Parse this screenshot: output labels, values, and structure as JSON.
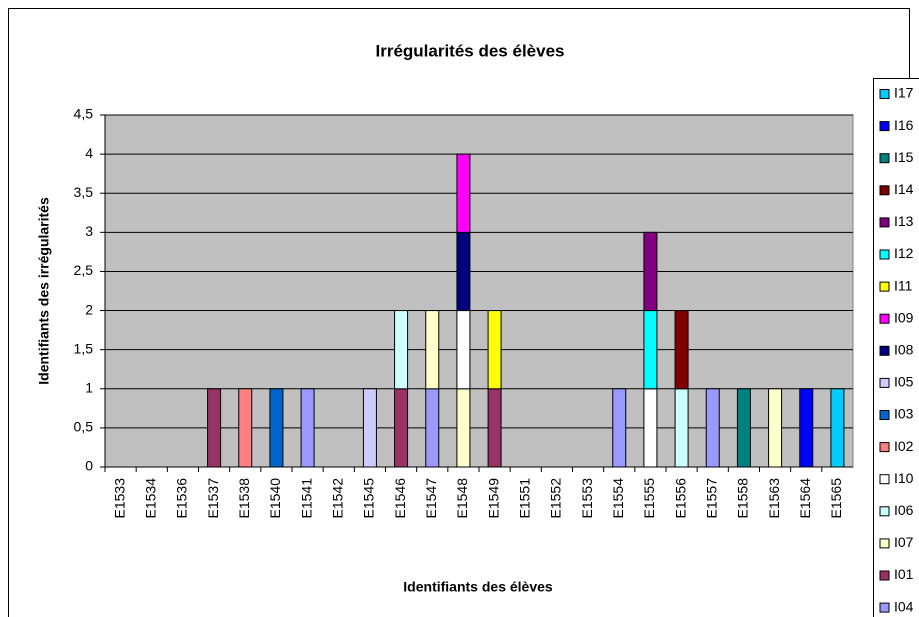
{
  "chart_data": {
    "type": "stacked_bar",
    "title": "Irrégularités des élèves",
    "x_label": "Identifiants des élèves",
    "y_label": "Identifiants des irrégularités",
    "categories": [
      "E1533",
      "E1534",
      "E1536",
      "E1537",
      "E1538",
      "E1540",
      "E1541",
      "E1542",
      "E1545",
      "E1546",
      "E1547",
      "E1548",
      "E1549",
      "E1551",
      "E1552",
      "E1553",
      "E1554",
      "E1555",
      "E1556",
      "E1557",
      "E1558",
      "E1563",
      "E1564",
      "E1565"
    ],
    "ylim": [
      0,
      4.5
    ],
    "yticks": [
      0,
      {
        "value": 0.5,
        "label": "0,5"
      },
      1,
      {
        "value": 1.5,
        "label": "1,5"
      },
      2,
      {
        "value": 2.5,
        "label": "2,5"
      },
      3,
      {
        "value": 3.5,
        "label": "3,5"
      },
      4,
      {
        "value": 4.5,
        "label": "4,5"
      }
    ],
    "grid": true,
    "legend": "right",
    "series": [
      {
        "name": "I04",
        "color": "#9999ff",
        "values": [
          null,
          null,
          null,
          null,
          null,
          null,
          1,
          null,
          null,
          null,
          1,
          null,
          null,
          null,
          null,
          null,
          1,
          null,
          null,
          1,
          null,
          null,
          null,
          null
        ]
      },
      {
        "name": "I01",
        "color": "#993366",
        "values": [
          null,
          null,
          null,
          1,
          null,
          null,
          null,
          null,
          null,
          1,
          null,
          null,
          1,
          null,
          null,
          null,
          null,
          null,
          null,
          null,
          null,
          null,
          null,
          null
        ]
      },
      {
        "name": "I07",
        "color": "#ffffcc",
        "values": [
          null,
          null,
          null,
          null,
          null,
          null,
          null,
          null,
          null,
          null,
          1,
          1,
          null,
          null,
          null,
          null,
          null,
          null,
          null,
          null,
          null,
          1,
          null,
          null
        ]
      },
      {
        "name": "I06",
        "color": "#ccffff",
        "values": [
          null,
          null,
          null,
          null,
          null,
          null,
          null,
          null,
          null,
          1,
          null,
          null,
          null,
          null,
          null,
          null,
          null,
          null,
          1,
          null,
          null,
          null,
          null,
          null
        ]
      },
      {
        "name": "I10",
        "color": "#ffffff",
        "values": [
          null,
          null,
          null,
          null,
          null,
          null,
          null,
          null,
          null,
          null,
          null,
          1,
          null,
          null,
          null,
          null,
          null,
          1,
          null,
          null,
          null,
          null,
          null,
          null
        ]
      },
      {
        "name": "I02",
        "color": "#ff8080",
        "values": [
          null,
          null,
          null,
          null,
          1,
          null,
          null,
          null,
          null,
          null,
          null,
          null,
          null,
          null,
          null,
          null,
          null,
          null,
          null,
          null,
          null,
          null,
          null,
          null
        ]
      },
      {
        "name": "I03",
        "color": "#0066cc",
        "values": [
          null,
          null,
          null,
          null,
          null,
          1,
          null,
          null,
          null,
          null,
          null,
          null,
          null,
          null,
          null,
          null,
          null,
          null,
          null,
          null,
          null,
          null,
          null,
          null
        ]
      },
      {
        "name": "I05",
        "color": "#ccccff",
        "values": [
          null,
          null,
          null,
          null,
          null,
          null,
          null,
          null,
          1,
          null,
          null,
          null,
          null,
          null,
          null,
          null,
          null,
          null,
          null,
          null,
          null,
          null,
          null,
          null
        ]
      },
      {
        "name": "I08",
        "color": "#000080",
        "values": [
          null,
          null,
          null,
          null,
          null,
          null,
          null,
          null,
          null,
          null,
          null,
          1,
          null,
          null,
          null,
          null,
          null,
          null,
          null,
          null,
          null,
          null,
          null,
          null
        ]
      },
      {
        "name": "I09",
        "color": "#ff00ff",
        "values": [
          null,
          null,
          null,
          null,
          null,
          null,
          null,
          null,
          null,
          null,
          null,
          1,
          null,
          null,
          null,
          null,
          null,
          null,
          null,
          null,
          null,
          null,
          null,
          null
        ]
      },
      {
        "name": "I11",
        "color": "#ffff00",
        "values": [
          null,
          null,
          null,
          null,
          null,
          null,
          null,
          null,
          null,
          null,
          null,
          null,
          1,
          null,
          null,
          null,
          null,
          null,
          null,
          null,
          null,
          null,
          null,
          null
        ]
      },
      {
        "name": "I12",
        "color": "#00ffff",
        "values": [
          null,
          null,
          null,
          null,
          null,
          null,
          null,
          null,
          null,
          null,
          null,
          null,
          null,
          null,
          null,
          null,
          null,
          1,
          null,
          null,
          null,
          null,
          null,
          null
        ]
      },
      {
        "name": "I13",
        "color": "#800080",
        "values": [
          null,
          null,
          null,
          null,
          null,
          null,
          null,
          null,
          null,
          null,
          null,
          null,
          null,
          null,
          null,
          null,
          null,
          1,
          null,
          null,
          null,
          null,
          null,
          null
        ]
      },
      {
        "name": "I14",
        "color": "#800000",
        "values": [
          null,
          null,
          null,
          null,
          null,
          null,
          null,
          null,
          null,
          null,
          null,
          null,
          null,
          null,
          null,
          null,
          null,
          null,
          1,
          null,
          null,
          null,
          null,
          null
        ]
      },
      {
        "name": "I15",
        "color": "#008080",
        "values": [
          null,
          null,
          null,
          null,
          null,
          null,
          null,
          null,
          null,
          null,
          null,
          null,
          null,
          null,
          null,
          null,
          null,
          null,
          null,
          null,
          1,
          null,
          null,
          null
        ]
      },
      {
        "name": "I16",
        "color": "#0000ff",
        "values": [
          null,
          null,
          null,
          null,
          null,
          null,
          null,
          null,
          null,
          null,
          null,
          null,
          null,
          null,
          null,
          null,
          null,
          null,
          null,
          null,
          null,
          null,
          1,
          null
        ]
      },
      {
        "name": "I17",
        "color": "#00ccff",
        "values": [
          null,
          null,
          null,
          null,
          null,
          null,
          null,
          null,
          null,
          null,
          null,
          null,
          null,
          null,
          null,
          null,
          null,
          null,
          null,
          null,
          null,
          null,
          null,
          1
        ]
      }
    ]
  }
}
